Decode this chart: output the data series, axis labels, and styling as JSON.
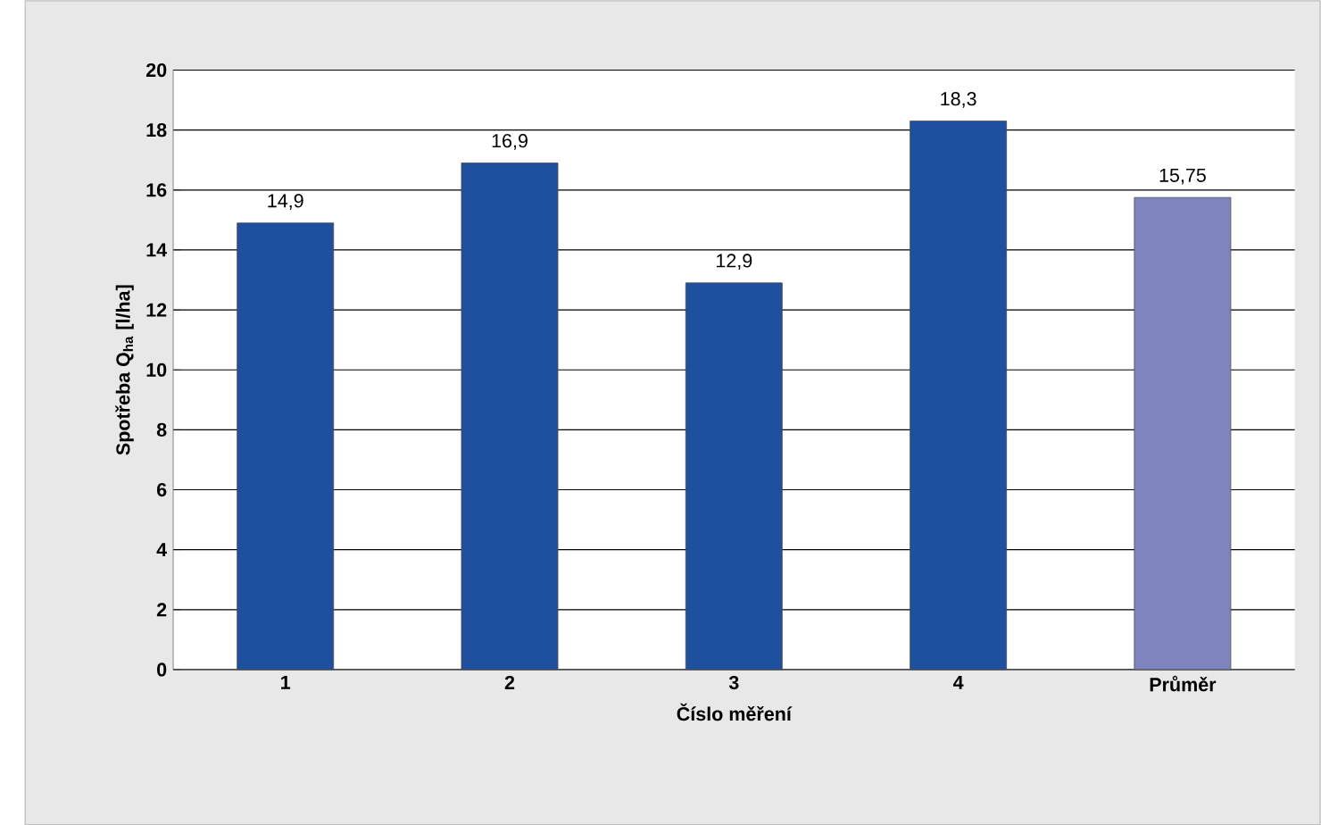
{
  "chart_data": {
    "type": "bar",
    "categories": [
      "1",
      "2",
      "3",
      "4",
      "Průměr"
    ],
    "values": [
      14.9,
      16.9,
      12.9,
      18.3,
      15.75
    ],
    "colors": [
      "#1f4f9f",
      "#1f4f9f",
      "#1f4f9f",
      "#1f4f9f",
      "#7f84bf"
    ],
    "value_labels": [
      "14,9",
      "16,9",
      "12,9",
      "18,3",
      "15,75"
    ],
    "xlabel": "Číslo měření",
    "ylabel": "Spotřeba Q$_{ha}$ [l/ha]",
    "ylim": [
      0,
      20
    ],
    "yticks": [
      0,
      2,
      4,
      6,
      8,
      10,
      12,
      14,
      16,
      18,
      20
    ],
    "grid": "y"
  }
}
